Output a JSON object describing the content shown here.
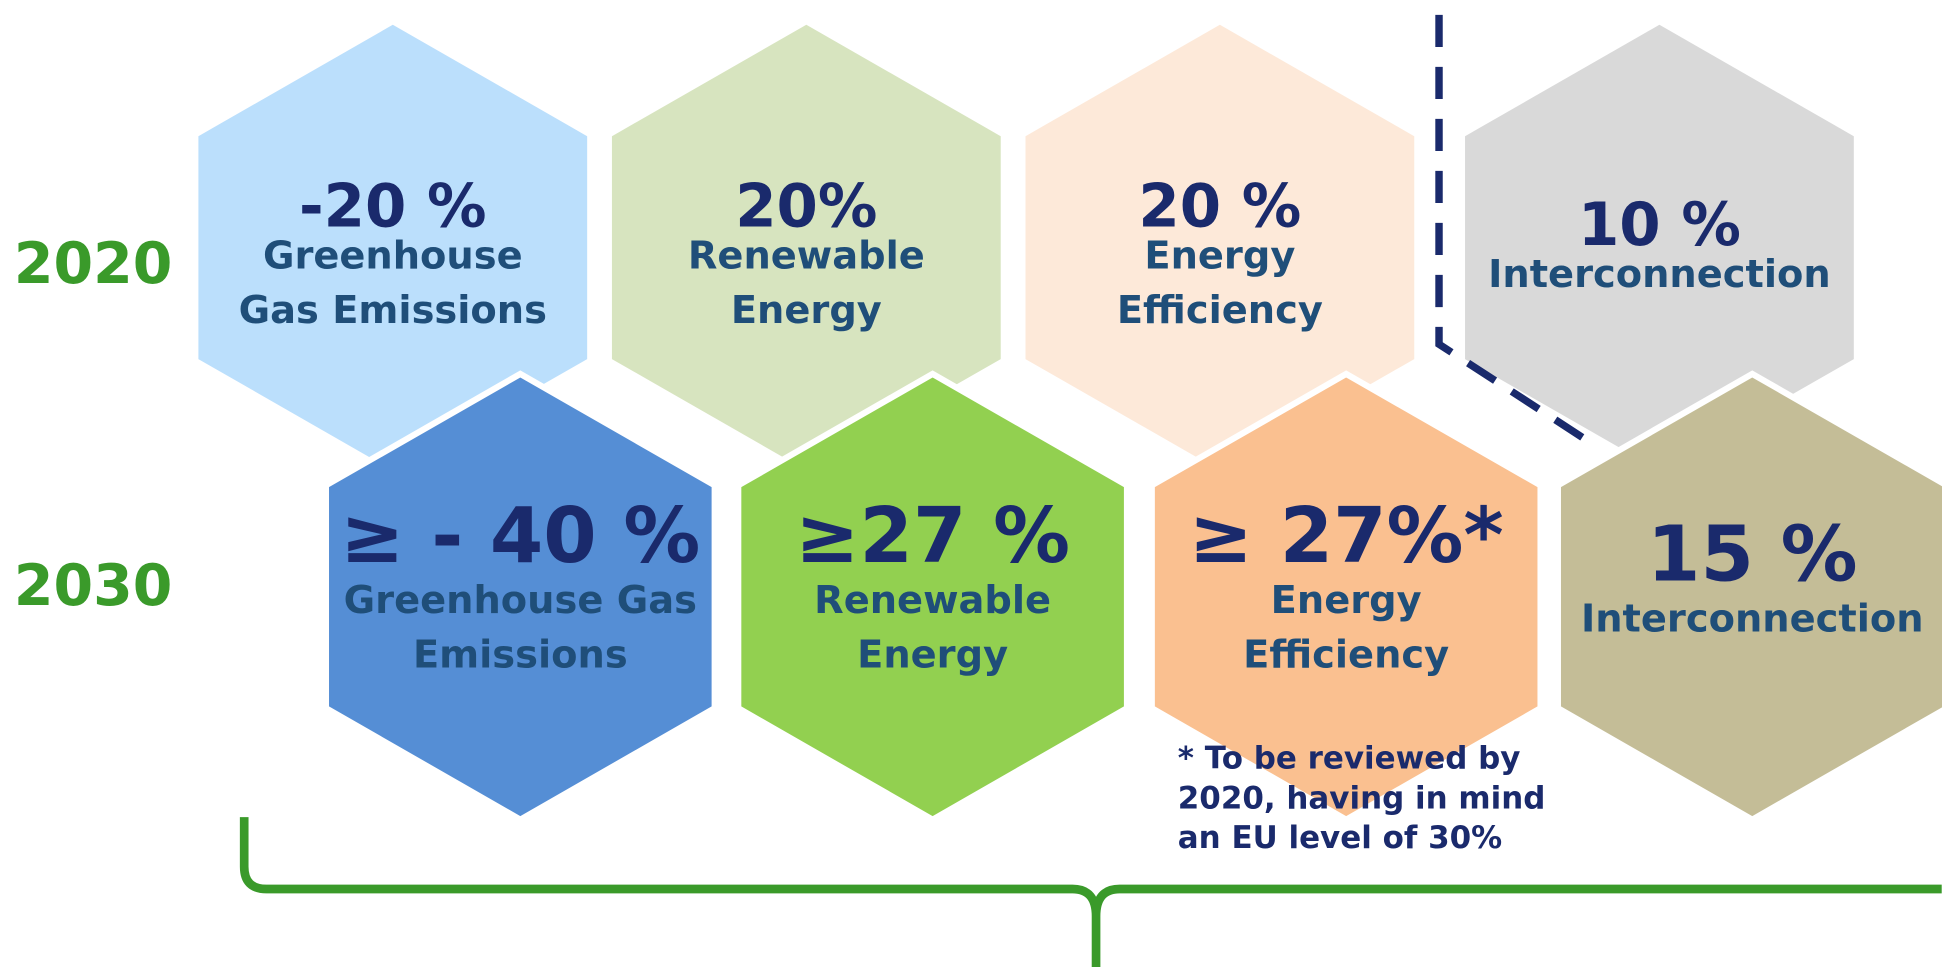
{
  "years": [
    "2020",
    "2030"
  ],
  "rows": [
    {
      "hexagons": [
        {
          "value": "-20 %",
          "lines": [
            "Greenhouse",
            "Gas Emissions"
          ]
        },
        {
          "value": "20%",
          "lines": [
            "Renewable",
            "Energy"
          ]
        },
        {
          "value": "20 %",
          "lines": [
            "Energy",
            "Efficiency"
          ]
        },
        {
          "value": "10 %",
          "lines": [
            "Interconnection"
          ]
        }
      ]
    },
    {
      "hexagons": [
        {
          "value": "≥ - 40 %",
          "lines": [
            "Greenhouse Gas",
            "Emissions"
          ]
        },
        {
          "value": "≥27 %",
          "lines": [
            "Renewable",
            "Energy"
          ]
        },
        {
          "value": "≥ 27%*",
          "lines": [
            "Energy",
            "Efficiency"
          ]
        },
        {
          "value": "15 %",
          "lines": [
            "Interconnection"
          ]
        }
      ]
    }
  ],
  "footnote": [
    "* To be reviewed by",
    "2020, having in mind",
    "an EU level of 30%"
  ]
}
